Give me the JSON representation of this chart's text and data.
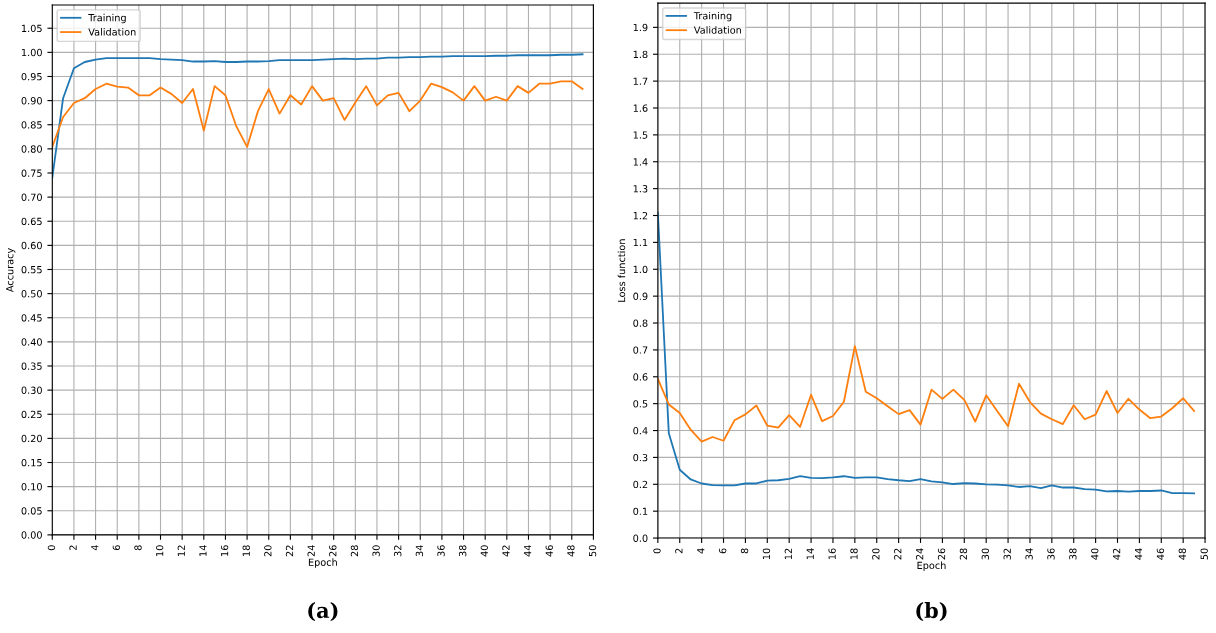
{
  "chart_data": [
    {
      "type": "line",
      "xlabel": "Epoch",
      "ylabel": "Accuracy",
      "annotations": [
        "(a)"
      ],
      "x": [
        0,
        1,
        2,
        3,
        4,
        5,
        6,
        7,
        8,
        9,
        10,
        11,
        12,
        13,
        14,
        15,
        16,
        17,
        18,
        19,
        20,
        21,
        22,
        23,
        24,
        25,
        26,
        27,
        28,
        29,
        30,
        31,
        32,
        33,
        34,
        35,
        36,
        37,
        38,
        39,
        40,
        41,
        42,
        43,
        44,
        45,
        46,
        47,
        48,
        49
      ],
      "series": [
        {
          "name": "Training",
          "color": "#1f77b4",
          "values": [
            0.74,
            0.905,
            0.967,
            0.98,
            0.985,
            0.988,
            0.988,
            0.988,
            0.988,
            0.988,
            0.986,
            0.985,
            0.984,
            0.981,
            0.981,
            0.982,
            0.98,
            0.98,
            0.981,
            0.981,
            0.982,
            0.984,
            0.984,
            0.984,
            0.984,
            0.985,
            0.986,
            0.987,
            0.986,
            0.987,
            0.987,
            0.989,
            0.989,
            0.99,
            0.99,
            0.991,
            0.991,
            0.992,
            0.992,
            0.992,
            0.992,
            0.993,
            0.993,
            0.994,
            0.994,
            0.994,
            0.994,
            0.995,
            0.995,
            0.996
          ]
        },
        {
          "name": "Validation",
          "color": "#ff7f0e",
          "values": [
            0.804,
            0.866,
            0.895,
            0.905,
            0.924,
            0.935,
            0.929,
            0.927,
            0.911,
            0.911,
            0.927,
            0.914,
            0.895,
            0.924,
            0.838,
            0.93,
            0.911,
            0.847,
            0.804,
            0.878,
            0.924,
            0.873,
            0.911,
            0.892,
            0.93,
            0.9,
            0.905,
            0.86,
            0.896,
            0.93,
            0.89,
            0.911,
            0.916,
            0.878,
            0.9,
            0.935,
            0.928,
            0.917,
            0.9,
            0.93,
            0.9,
            0.908,
            0.9,
            0.93,
            0.916,
            0.935,
            0.935,
            0.94,
            0.94,
            0.924
          ]
        }
      ],
      "xlim": [
        0,
        50
      ],
      "xticks": [
        0,
        2,
        4,
        6,
        8,
        10,
        12,
        14,
        16,
        18,
        20,
        22,
        24,
        26,
        28,
        30,
        32,
        34,
        36,
        38,
        40,
        42,
        44,
        46,
        48,
        50
      ],
      "ylim": [
        0,
        1.098
      ],
      "yticks": [
        {
          "value": 0,
          "label": "0.00"
        },
        {
          "value": 0.05,
          "label": "0.05"
        },
        {
          "value": 0.1,
          "label": "0.10"
        },
        {
          "value": 0.15,
          "label": "0.15"
        },
        {
          "value": 0.2,
          "label": "0.20"
        },
        {
          "value": 0.25,
          "label": "0.25"
        },
        {
          "value": 0.3,
          "label": "0.30"
        },
        {
          "value": 0.35,
          "label": "0.35"
        },
        {
          "value": 0.4,
          "label": "0.40"
        },
        {
          "value": 0.45,
          "label": "0.45"
        },
        {
          "value": 0.5,
          "label": "0.50"
        },
        {
          "value": 0.55,
          "label": "0.55"
        },
        {
          "value": 0.6,
          "label": "0.60"
        },
        {
          "value": 0.65,
          "label": "0.65"
        },
        {
          "value": 0.7,
          "label": "0.70"
        },
        {
          "value": 0.75,
          "label": "0.75"
        },
        {
          "value": 0.8,
          "label": "0.80"
        },
        {
          "value": 0.85,
          "label": "0.85"
        },
        {
          "value": 0.9,
          "label": "0.90"
        },
        {
          "value": 0.95,
          "label": "0.95"
        },
        {
          "value": 1.0,
          "label": "1.00"
        },
        {
          "value": 1.05,
          "label": "1.05"
        }
      ],
      "grid": true,
      "legend": "top left"
    },
    {
      "type": "line",
      "xlabel": "Epoch",
      "ylabel": "Loss function",
      "annotations": [
        "(b)"
      ],
      "x": [
        0,
        1,
        2,
        3,
        4,
        5,
        6,
        7,
        8,
        9,
        10,
        11,
        12,
        13,
        14,
        15,
        16,
        17,
        18,
        19,
        20,
        21,
        22,
        23,
        24,
        25,
        26,
        27,
        28,
        29,
        30,
        31,
        32,
        33,
        34,
        35,
        36,
        37,
        38,
        39,
        40,
        41,
        42,
        43,
        44,
        45,
        46,
        47,
        48,
        49
      ],
      "series": [
        {
          "name": "Training",
          "color": "#1f77b4",
          "values": [
            1.21,
            0.39,
            0.254,
            0.218,
            0.203,
            0.197,
            0.196,
            0.196,
            0.203,
            0.203,
            0.214,
            0.215,
            0.22,
            0.23,
            0.224,
            0.223,
            0.226,
            0.23,
            0.224,
            0.226,
            0.226,
            0.219,
            0.215,
            0.212,
            0.219,
            0.211,
            0.207,
            0.201,
            0.204,
            0.203,
            0.2,
            0.199,
            0.196,
            0.19,
            0.193,
            0.186,
            0.196,
            0.188,
            0.188,
            0.182,
            0.18,
            0.174,
            0.175,
            0.173,
            0.175,
            0.175,
            0.177,
            0.167,
            0.167,
            0.166
          ]
        },
        {
          "name": "Validation",
          "color": "#ff7f0e",
          "values": [
            0.592,
            0.497,
            0.465,
            0.403,
            0.359,
            0.376,
            0.362,
            0.438,
            0.46,
            0.493,
            0.418,
            0.411,
            0.457,
            0.414,
            0.533,
            0.435,
            0.454,
            0.507,
            0.714,
            0.544,
            0.52,
            0.49,
            0.461,
            0.476,
            0.422,
            0.552,
            0.518,
            0.552,
            0.514,
            0.433,
            0.531,
            0.473,
            0.416,
            0.574,
            0.506,
            0.463,
            0.442,
            0.424,
            0.494,
            0.442,
            0.459,
            0.547,
            0.465,
            0.518,
            0.478,
            0.446,
            0.452,
            0.483,
            0.52,
            0.473
          ]
        }
      ],
      "xlim": [
        0,
        50
      ],
      "xticks": [
        0,
        2,
        4,
        6,
        8,
        10,
        12,
        14,
        16,
        18,
        20,
        22,
        24,
        26,
        28,
        30,
        32,
        34,
        36,
        38,
        40,
        42,
        44,
        46,
        48,
        50
      ],
      "ylim": [
        0,
        1.99
      ],
      "yticks": [
        {
          "value": 0,
          "label": "0.0"
        },
        {
          "value": 0.1,
          "label": "0.1"
        },
        {
          "value": 0.2,
          "label": "0.2"
        },
        {
          "value": 0.3,
          "label": "0.3"
        },
        {
          "value": 0.4,
          "label": "0.4"
        },
        {
          "value": 0.5,
          "label": "0.5"
        },
        {
          "value": 0.6,
          "label": "0.6"
        },
        {
          "value": 0.7,
          "label": "0.7"
        },
        {
          "value": 0.8,
          "label": "0.8"
        },
        {
          "value": 0.9,
          "label": "0.9"
        },
        {
          "value": 1.0,
          "label": "1.0"
        },
        {
          "value": 1.1,
          "label": "1.1"
        },
        {
          "value": 1.2,
          "label": "1.2"
        },
        {
          "value": 1.3,
          "label": "1.3"
        },
        {
          "value": 1.4,
          "label": "1.4"
        },
        {
          "value": 1.5,
          "label": "1.5"
        },
        {
          "value": 1.6,
          "label": "1.6"
        },
        {
          "value": 1.7,
          "label": "1.7"
        },
        {
          "value": 1.8,
          "label": "1.8"
        },
        {
          "value": 1.9,
          "label": "1.9"
        }
      ],
      "grid": true,
      "legend": "top left"
    }
  ]
}
